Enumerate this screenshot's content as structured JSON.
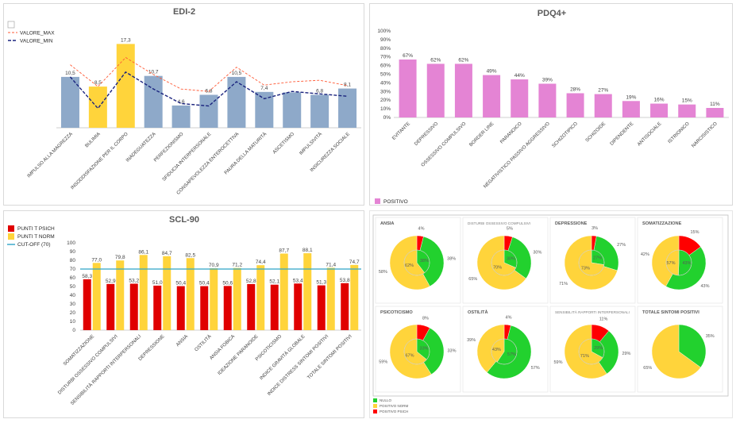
{
  "colors": {
    "blue": "#8ea9c9",
    "yellow": "#ffd43b",
    "red": "#ff0000",
    "darkred": "#e00000",
    "pink": "#e484d4",
    "cutoff": "#2fa4c8",
    "green": "#22d12e",
    "maxline": "#ff5a36",
    "minline": "#1a237e",
    "gray": "#d9d9d9"
  },
  "chart_data": [
    {
      "id": "edi2",
      "type": "bar",
      "title": "EDI-2",
      "categories": [
        "IMPULSO ALLA MAGREZZA",
        "BULIMIA",
        "INSODDISFAZIONE PER IL CORPO",
        "INADEGUATEZZA",
        "PERFEZIONISMO",
        "SFIDUCIA INTERPERSONALE",
        "CONSAPEVOLEZZA ENTEROCETTIVA",
        "PAURA DELLA MATURITÀ",
        "ASCETISMO",
        "IMPULSIVITÀ",
        "INSICUREZZA SOCIALE"
      ],
      "values": [
        10.5,
        8.5,
        17.3,
        10.7,
        4.6,
        6.8,
        10.5,
        7.4,
        7.3,
        6.8,
        8.1
      ],
      "labels": [
        "10,5",
        "8,5",
        "17,3",
        "10,7",
        "4,6",
        "6,8",
        "10,5",
        "7,4",
        "",
        "6,8",
        "8,1"
      ],
      "highlight": [
        false,
        true,
        true,
        false,
        false,
        false,
        false,
        false,
        false,
        false,
        false
      ],
      "lines": [
        {
          "name": "VALORE_MAX",
          "values": [
            13,
            8.5,
            14.5,
            11,
            8,
            7.5,
            12.5,
            8.8,
            9.5,
            9.8,
            8.7
          ]
        },
        {
          "name": "VALORE_MIN",
          "values": [
            10.5,
            4,
            11.5,
            8,
            5,
            4.5,
            9.5,
            6,
            7.5,
            7,
            6.5
          ]
        }
      ],
      "ylim": [
        0,
        19
      ]
    },
    {
      "id": "pdq4",
      "type": "bar",
      "title": "PDQ4+",
      "categories": [
        "EVITANTE",
        "DEPRESSIVO",
        "OSSESSIVO COMPULSIVO",
        "BORDER LINE",
        "PARANOICO",
        "NEGATIVISTICO PASSIVO AGGRESSIVO",
        "SCHIZOTIPICO",
        "SCHIZOIDE",
        "DIPENDENTE",
        "ANTISOCIALE",
        "ISTRIONICO",
        "NARCISISTICO"
      ],
      "values": [
        67,
        62,
        62,
        49,
        44,
        39,
        28,
        27,
        19,
        16,
        15,
        11
      ],
      "labels": [
        "67%",
        "62%",
        "62%",
        "49%",
        "44%",
        "39%",
        "28%",
        "27%",
        "19%",
        "16%",
        "15%",
        "11%"
      ],
      "yticks": [
        "0%",
        "10%",
        "20%",
        "30%",
        "40%",
        "50%",
        "60%",
        "70%",
        "80%",
        "90%",
        "100%"
      ],
      "ylim": [
        0,
        100
      ],
      "legend": "POSITIVO"
    },
    {
      "id": "scl90",
      "type": "bar",
      "title": "SCL-90",
      "categories": [
        "SOMATIZZAZIONE",
        "DISTURBI OSSESSIVO COMPULSIVI",
        "SENSIBILITÀ RAPPORTI INTERPERSONALI",
        "DEPRESSIONE",
        "ANSIA",
        "OSTILITÀ",
        "ANSIA FOBICA",
        "IDEAZIONE PARANOIDE",
        "PSICOTICISMO",
        "INDICE GRAVITÀ GLOBALE",
        "INDICE DISTRESS SINTOMI POSITIVI",
        "TOTALE SINTOMI POSITIVI"
      ],
      "series": [
        {
          "name": "PUNTI T PSICH",
          "values": [
            58.3,
            52.9,
            53.2,
            51.0,
            50.4,
            50.4,
            50.6,
            52.8,
            52.1,
            53.4,
            51.3,
            53.8
          ],
          "labels": [
            "58,3",
            "52,9",
            "53,2",
            "51,0",
            "50,4",
            "50,4",
            "50,6",
            "52,8",
            "52,1",
            "53,4",
            "51,3",
            "53,8"
          ]
        },
        {
          "name": "PUNTI T NORM",
          "values": [
            77.0,
            79.8,
            86.1,
            84.7,
            82.5,
            70.9,
            71.2,
            74.4,
            87.7,
            88.1,
            71.4,
            74.7
          ],
          "labels": [
            "77,0",
            "79,8",
            "86,1",
            "84,7",
            "82,5",
            "70,9",
            "71,2",
            "74,4",
            "87,7",
            "88,1",
            "71,4",
            "74,7"
          ]
        },
        {
          "name": "CUT-OFF (70)",
          "values": [
            70,
            70,
            70,
            70,
            70,
            70,
            70,
            70,
            70,
            70,
            70,
            70
          ]
        }
      ],
      "yticks": [
        "0",
        "10",
        "20",
        "30",
        "40",
        "50",
        "60",
        "70",
        "80",
        "90",
        "100"
      ],
      "ylim": [
        0,
        100
      ]
    },
    {
      "id": "donuts",
      "type": "pie",
      "items": [
        {
          "title": "ANSIA",
          "outer": {
            "red": 4,
            "green": 38,
            "yellow": 58
          },
          "outer_labels": [
            "4%",
            "38%",
            "58%"
          ],
          "inner_labels": [
            "38%",
            "62%"
          ],
          "thin": false
        },
        {
          "title": "DISTURBI OSSESSIVO COMPULSIVI",
          "outer": {
            "red": 5,
            "green": 30,
            "yellow": 65
          },
          "outer_labels": [
            "5%",
            "30%",
            "65%"
          ],
          "inner_labels": [
            "30%",
            "70%"
          ],
          "thin": true
        },
        {
          "title": "DEPRESSIONE",
          "outer": {
            "red": 3,
            "green": 27,
            "yellow": 71
          },
          "outer_labels": [
            "3%",
            "27%",
            "71%"
          ],
          "inner_labels": [
            "27%",
            "73%"
          ],
          "thin": false
        },
        {
          "title": "SOMATIZZAZIONE",
          "outer": {
            "red": 15,
            "green": 43,
            "yellow": 42
          },
          "outer_labels": [
            "15%",
            "43%",
            "42%"
          ],
          "inner_labels": [
            "43%",
            "57%"
          ],
          "thin": false
        },
        {
          "title": "PSICOTICISMO",
          "outer": {
            "red": 8,
            "green": 33,
            "yellow": 59
          },
          "outer_labels": [
            "8%",
            "33%",
            "59%"
          ],
          "inner_labels": [
            "33%",
            "67%"
          ],
          "thin": false
        },
        {
          "title": "OSTILITÀ",
          "outer": {
            "red": 4,
            "green": 57,
            "yellow": 39
          },
          "outer_labels": [
            "4%",
            "57%",
            "39%"
          ],
          "inner_labels": [
            "57%",
            "43%"
          ],
          "thin": false
        },
        {
          "title": "SENSIBILITÀ RAPPORTI INTERPERSONALI",
          "outer": {
            "red": 11,
            "green": 29,
            "yellow": 59
          },
          "outer_labels": [
            "11%",
            "29%",
            "59%"
          ],
          "inner_labels": [
            "29%",
            "71%"
          ],
          "thin": true
        },
        {
          "title": "TOTALE SINTOMI POSITIVI",
          "outer": {
            "red": 0,
            "green": 35,
            "yellow": 65
          },
          "outer_labels": [
            "",
            "35%",
            "65%"
          ],
          "inner_labels": [
            "",
            ""
          ],
          "thin": false,
          "single": true
        }
      ],
      "legend": [
        "NULLO",
        "POSITIVO NORM",
        "POSITIVO PSICH"
      ]
    }
  ]
}
